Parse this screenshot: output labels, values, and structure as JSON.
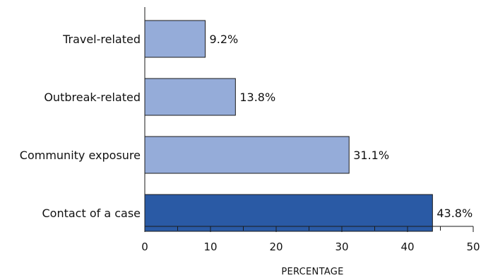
{
  "chart_data": {
    "type": "bar",
    "orientation": "horizontal",
    "categories": [
      "Travel-related",
      "Outbreak-related",
      "Community exposure",
      "Contact of a case"
    ],
    "values": [
      9.2,
      13.8,
      31.1,
      43.8
    ],
    "value_labels": [
      "9.2%",
      "13.8%",
      "31.1%",
      "43.8%"
    ],
    "xlabel": "PERCENTAGE",
    "xlim": [
      0,
      50
    ],
    "xticks": [
      0,
      10,
      20,
      30,
      40,
      50
    ],
    "grid": false,
    "colors": {
      "default_bar": "#95acd9",
      "highlight_bar": "#2a5aa5",
      "highlight_category": "Contact of a case",
      "outline": "#1a1a1a"
    }
  }
}
